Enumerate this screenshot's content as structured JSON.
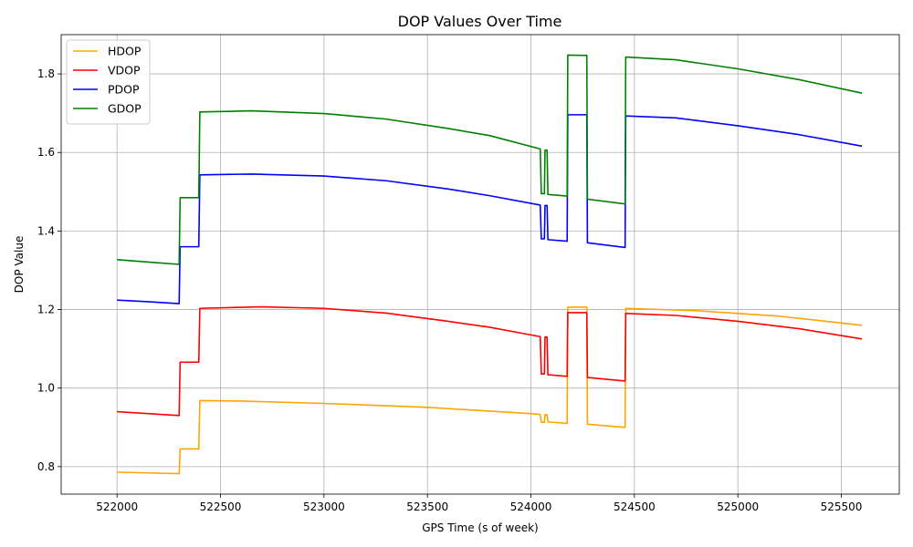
{
  "chart_data": {
    "type": "line",
    "title": "DOP Values Over Time",
    "xlabel": "GPS Time (s of week)",
    "ylabel": "DOP Value",
    "xlim": [
      521730,
      525780
    ],
    "ylim": [
      0.73,
      1.9
    ],
    "xticks": [
      522000,
      522500,
      523000,
      523500,
      524000,
      524500,
      525000,
      525500
    ],
    "yticks": [
      0.8,
      1.0,
      1.2,
      1.4,
      1.6,
      1.8
    ],
    "ytick_labels": [
      "0.8",
      "1.0",
      "1.2",
      "1.4",
      "1.6",
      "1.8"
    ],
    "grid": true,
    "legend_position": "top-left",
    "series": [
      {
        "name": "HDOP",
        "color": "#ffa500",
        "points": [
          [
            522000,
            0.786
          ],
          [
            522150,
            0.784
          ],
          [
            522300,
            0.782
          ],
          [
            522305,
            0.845
          ],
          [
            522395,
            0.845
          ],
          [
            522400,
            0.968
          ],
          [
            522600,
            0.967
          ],
          [
            523000,
            0.961
          ],
          [
            523500,
            0.951
          ],
          [
            524000,
            0.935
          ],
          [
            524045,
            0.933
          ],
          [
            524050,
            0.913
          ],
          [
            524065,
            0.913
          ],
          [
            524068,
            0.932
          ],
          [
            524078,
            0.932
          ],
          [
            524082,
            0.914
          ],
          [
            524175,
            0.91
          ],
          [
            524178,
            1.206
          ],
          [
            524270,
            1.206
          ],
          [
            524273,
            0.908
          ],
          [
            524455,
            0.9
          ],
          [
            524458,
            1.203
          ],
          [
            524800,
            1.197
          ],
          [
            525200,
            1.183
          ],
          [
            525600,
            1.16
          ]
        ]
      },
      {
        "name": "VDOP",
        "color": "#ff0000",
        "points": [
          [
            522000,
            0.94
          ],
          [
            522150,
            0.935
          ],
          [
            522300,
            0.93
          ],
          [
            522305,
            1.066
          ],
          [
            522395,
            1.066
          ],
          [
            522400,
            1.203
          ],
          [
            522700,
            1.207
          ],
          [
            523000,
            1.203
          ],
          [
            523300,
            1.191
          ],
          [
            523600,
            1.17
          ],
          [
            523800,
            1.155
          ],
          [
            524045,
            1.131
          ],
          [
            524050,
            1.036
          ],
          [
            524065,
            1.036
          ],
          [
            524068,
            1.13
          ],
          [
            524078,
            1.13
          ],
          [
            524082,
            1.034
          ],
          [
            524175,
            1.03
          ],
          [
            524178,
            1.192
          ],
          [
            524270,
            1.192
          ],
          [
            524273,
            1.027
          ],
          [
            524455,
            1.018
          ],
          [
            524458,
            1.19
          ],
          [
            524700,
            1.185
          ],
          [
            525000,
            1.17
          ],
          [
            525300,
            1.151
          ],
          [
            525600,
            1.125
          ]
        ]
      },
      {
        "name": "PDOP",
        "color": "#0000ff",
        "points": [
          [
            522000,
            1.224
          ],
          [
            522150,
            1.22
          ],
          [
            522300,
            1.215
          ],
          [
            522305,
            1.36
          ],
          [
            522395,
            1.36
          ],
          [
            522400,
            1.543
          ],
          [
            522650,
            1.545
          ],
          [
            523000,
            1.54
          ],
          [
            523300,
            1.528
          ],
          [
            523600,
            1.507
          ],
          [
            523800,
            1.49
          ],
          [
            524045,
            1.466
          ],
          [
            524050,
            1.38
          ],
          [
            524065,
            1.38
          ],
          [
            524068,
            1.465
          ],
          [
            524078,
            1.465
          ],
          [
            524082,
            1.378
          ],
          [
            524175,
            1.374
          ],
          [
            524178,
            1.696
          ],
          [
            524270,
            1.696
          ],
          [
            524273,
            1.37
          ],
          [
            524455,
            1.358
          ],
          [
            524458,
            1.693
          ],
          [
            524700,
            1.688
          ],
          [
            525000,
            1.668
          ],
          [
            525300,
            1.645
          ],
          [
            525600,
            1.616
          ]
        ]
      },
      {
        "name": "GDOP",
        "color": "#008000",
        "points": [
          [
            522000,
            1.327
          ],
          [
            522150,
            1.321
          ],
          [
            522300,
            1.315
          ],
          [
            522305,
            1.485
          ],
          [
            522395,
            1.485
          ],
          [
            522400,
            1.703
          ],
          [
            522650,
            1.706
          ],
          [
            523000,
            1.699
          ],
          [
            523300,
            1.685
          ],
          [
            523600,
            1.661
          ],
          [
            523800,
            1.643
          ],
          [
            524045,
            1.609
          ],
          [
            524050,
            1.495
          ],
          [
            524065,
            1.495
          ],
          [
            524068,
            1.606
          ],
          [
            524078,
            1.606
          ],
          [
            524082,
            1.493
          ],
          [
            524175,
            1.489
          ],
          [
            524178,
            1.848
          ],
          [
            524270,
            1.847
          ],
          [
            524273,
            1.481
          ],
          [
            524455,
            1.469
          ],
          [
            524458,
            1.843
          ],
          [
            524700,
            1.836
          ],
          [
            525000,
            1.813
          ],
          [
            525300,
            1.785
          ],
          [
            525600,
            1.751
          ]
        ]
      }
    ]
  }
}
